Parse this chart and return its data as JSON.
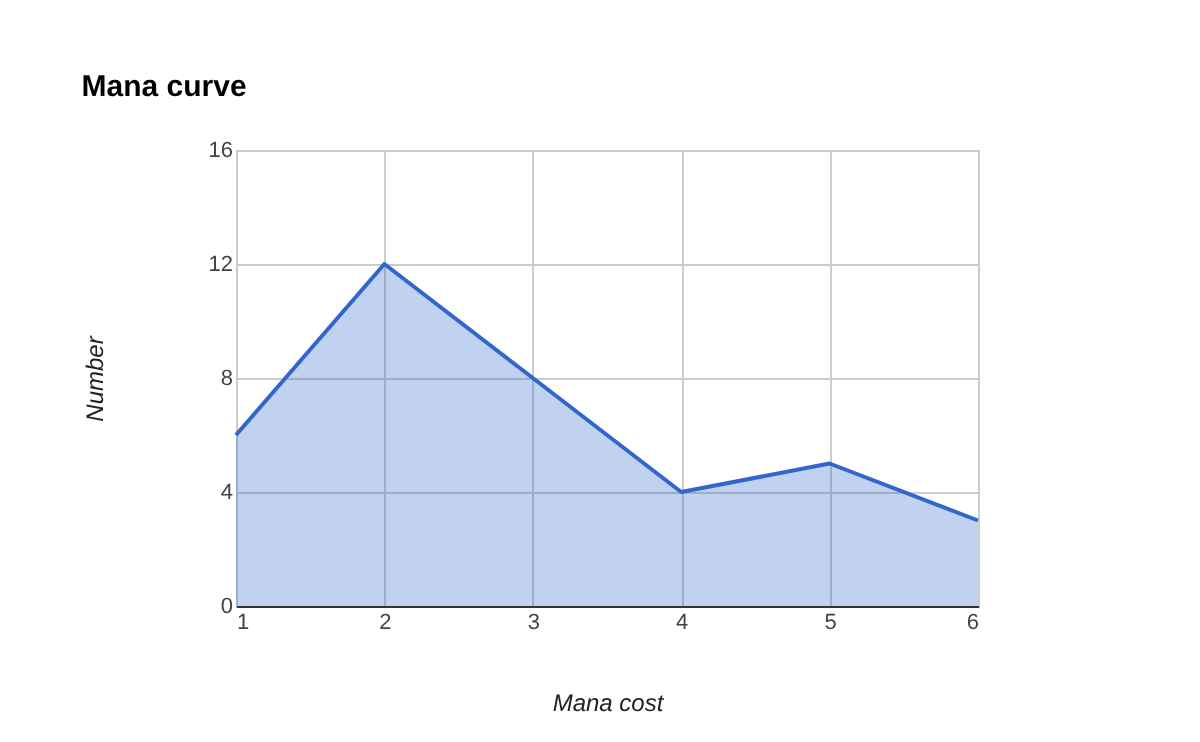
{
  "chart_data": {
    "type": "area",
    "title": "Mana curve",
    "xlabel": "Mana cost",
    "ylabel": "Number",
    "x": [
      1,
      2,
      3,
      4,
      5,
      6
    ],
    "series": [
      {
        "color": "#3366cc",
        "values": [
          6,
          12,
          8,
          4,
          5,
          3
        ]
      }
    ],
    "xlim": [
      1,
      6
    ],
    "xticks": [
      1,
      2,
      3,
      4,
      5,
      6
    ],
    "ylim": [
      0,
      16
    ],
    "yticks": [
      0,
      4,
      8,
      12,
      16
    ],
    "grid": true
  }
}
